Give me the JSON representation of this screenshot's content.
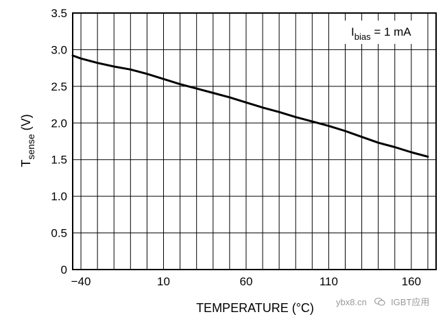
{
  "chart_data": {
    "type": "line",
    "title": "",
    "xlabel": "TEMPERATURE (°C)",
    "ylabel": {
      "main": "T",
      "sub": "sense",
      "unit": " (V)"
    },
    "xlim": [
      -45,
      175
    ],
    "ylim": [
      0,
      3.5
    ],
    "x_grid_step": 10,
    "y_grid_step": 0.5,
    "x_ticks": [
      -40,
      10,
      60,
      110,
      160
    ],
    "x_tick_labels": [
      "−40",
      "10",
      "60",
      "110",
      "160"
    ],
    "y_ticks": [
      0,
      0.5,
      1.0,
      1.5,
      2.0,
      2.5,
      3.0,
      3.5
    ],
    "y_tick_labels": [
      "0",
      "0.5",
      "1.0",
      "1.5",
      "2.0",
      "2.5",
      "3.0",
      "3.5"
    ],
    "annotation": {
      "main": "I",
      "sub": "bias",
      "rest": " = 1 mA",
      "position": "top-right"
    },
    "series": [
      {
        "name": "Tsense",
        "x": [
          -45,
          -40,
          -30,
          -20,
          -10,
          0,
          10,
          20,
          30,
          40,
          50,
          60,
          70,
          80,
          90,
          100,
          110,
          120,
          130,
          140,
          150,
          160,
          170
        ],
        "y": [
          2.92,
          2.88,
          2.82,
          2.77,
          2.73,
          2.67,
          2.6,
          2.53,
          2.47,
          2.41,
          2.35,
          2.28,
          2.21,
          2.15,
          2.08,
          2.02,
          1.96,
          1.89,
          1.81,
          1.73,
          1.67,
          1.6,
          1.54
        ]
      }
    ]
  },
  "watermark": {
    "text1": "ybx8.cn",
    "text2": "IGBT应用"
  }
}
